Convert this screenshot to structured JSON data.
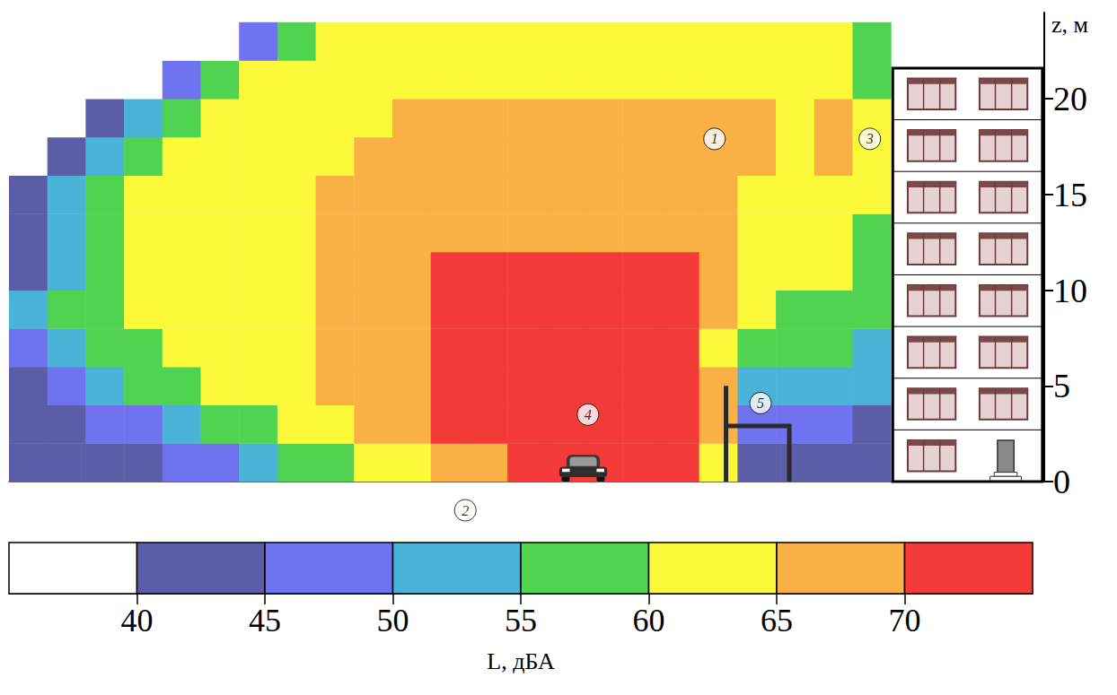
{
  "chart_data": {
    "type": "heatmap",
    "x": [
      1,
      3,
      5,
      7,
      9,
      11,
      13,
      15,
      17,
      19,
      21,
      23,
      25,
      27,
      29,
      31,
      33,
      35,
      37,
      39,
      41,
      43,
      45
    ],
    "y": [
      1,
      3,
      5,
      7,
      9,
      11,
      13,
      15,
      17,
      19,
      21,
      23
    ],
    "values": [
      [
        42,
        42,
        42,
        42,
        47,
        47,
        52,
        57,
        57,
        62,
        62,
        67,
        67,
        72,
        72,
        72,
        72,
        72,
        62,
        42,
        42,
        42,
        42
      ],
      [
        42,
        42,
        47,
        47,
        52,
        57,
        57,
        62,
        62,
        67,
        67,
        72,
        72,
        72,
        72,
        72,
        72,
        72,
        67,
        47,
        47,
        47,
        42
      ],
      [
        42,
        47,
        52,
        57,
        57,
        62,
        62,
        62,
        67,
        67,
        67,
        72,
        72,
        72,
        72,
        72,
        72,
        72,
        67,
        52,
        52,
        52,
        52
      ],
      [
        47,
        52,
        57,
        57,
        62,
        62,
        62,
        62,
        67,
        67,
        67,
        72,
        72,
        72,
        72,
        72,
        72,
        72,
        62,
        57,
        57,
        57,
        52
      ],
      [
        52,
        57,
        57,
        62,
        62,
        62,
        62,
        62,
        67,
        67,
        67,
        72,
        72,
        72,
        72,
        72,
        72,
        72,
        67,
        62,
        57,
        57,
        57
      ],
      [
        42,
        52,
        57,
        62,
        62,
        62,
        62,
        62,
        67,
        67,
        67,
        72,
        72,
        72,
        72,
        72,
        72,
        72,
        67,
        62,
        62,
        62,
        57
      ],
      [
        42,
        52,
        57,
        62,
        62,
        62,
        62,
        62,
        67,
        67,
        67,
        67,
        67,
        67,
        67,
        67,
        67,
        67,
        67,
        62,
        62,
        62,
        57
      ],
      [
        42,
        52,
        57,
        62,
        62,
        62,
        62,
        62,
        67,
        67,
        67,
        67,
        67,
        67,
        67,
        67,
        67,
        67,
        67,
        62,
        62,
        62,
        62
      ],
      [
        37,
        42,
        52,
        57,
        62,
        62,
        62,
        62,
        62,
        67,
        67,
        67,
        67,
        67,
        67,
        67,
        67,
        67,
        67,
        67,
        62,
        67,
        62
      ],
      [
        37,
        37,
        42,
        52,
        57,
        62,
        62,
        62,
        62,
        62,
        67,
        67,
        67,
        67,
        67,
        67,
        67,
        67,
        67,
        67,
        62,
        67,
        62
      ],
      [
        37,
        37,
        37,
        37,
        47,
        57,
        62,
        62,
        62,
        62,
        62,
        62,
        62,
        62,
        62,
        62,
        62,
        62,
        62,
        62,
        62,
        62,
        57
      ],
      [
        37,
        37,
        37,
        37,
        37,
        37,
        47,
        57,
        62,
        62,
        62,
        62,
        62,
        62,
        62,
        62,
        62,
        62,
        62,
        62,
        62,
        62,
        57
      ]
    ],
    "xlim": [
      0,
      54
    ],
    "ylim": [
      0,
      24.5
    ],
    "yticks": [
      0,
      5,
      10,
      15,
      20
    ],
    "y_label": "z, м",
    "tick_labels": "y",
    "grid": false,
    "colorbar": {
      "bins": [
        35,
        40,
        45,
        50,
        55,
        60,
        65,
        70,
        75
      ],
      "colors": [
        "#ffffff",
        "#5b5ea6",
        "#6f73ef",
        "#4ab4d8",
        "#50d350",
        "#fbf93a",
        "#f9b145",
        "#f53a3a"
      ],
      "range": [
        35,
        75
      ],
      "ticks": [
        40,
        45,
        50,
        55,
        60,
        65,
        70
      ],
      "label": "L, дБА"
    },
    "annotations": [
      {
        "text": "1",
        "x": 36.8,
        "y": 17.9
      },
      {
        "text": "2",
        "x": 23.8,
        "y": -1.5
      },
      {
        "text": "3",
        "x": 44.9,
        "y": 17.9
      },
      {
        "text": "4",
        "x": 30.2,
        "y": 3.5
      },
      {
        "text": "5",
        "x": 39.2,
        "y": 4.1
      }
    ],
    "objects": {
      "building": {
        "x": [
          46.1,
          53.9
        ],
        "y": [
          0,
          21.6
        ]
      },
      "car": {
        "x": [
          28.7,
          31.2
        ],
        "y": [
          0,
          1.4
        ]
      },
      "barrier": {
        "x": [
          37.4,
          40.7
        ],
        "y": [
          0,
          5.0
        ]
      }
    }
  }
}
